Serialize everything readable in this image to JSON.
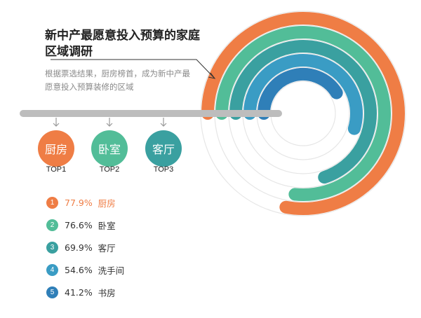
{
  "title": "新中产最愿意投入预算的家庭区域调研",
  "subtitle": "根据票选结果，厨房榜首，成为新中产最愿意投入预算装修的区域",
  "top3": [
    {
      "name": "厨房",
      "rank": "TOP1",
      "color": "#ef7d45"
    },
    {
      "name": "卧室",
      "rank": "TOP2",
      "color": "#52bd98"
    },
    {
      "name": "客厅",
      "rank": "TOP3",
      "color": "#3aa0a0"
    }
  ],
  "legend": [
    {
      "num": "1",
      "pct": "77.9%",
      "name": "厨房",
      "color": "#ef7d45",
      "highlight": true
    },
    {
      "num": "2",
      "pct": "76.6%",
      "name": "卧室",
      "color": "#52bd98",
      "highlight": false
    },
    {
      "num": "3",
      "pct": "69.9%",
      "name": "客厅",
      "color": "#3aa0a0",
      "highlight": false
    },
    {
      "num": "4",
      "pct": "54.6%",
      "name": "洗手间",
      "color": "#3a9cc4",
      "highlight": false
    },
    {
      "num": "5",
      "pct": "41.2%",
      "name": "书房",
      "color": "#2f7fb8",
      "highlight": false
    }
  ],
  "chart_data": {
    "type": "radial_bar",
    "title": "新中产最愿意投入预算的家庭区域调研",
    "categories": [
      "厨房",
      "卧室",
      "客厅",
      "洗手间",
      "书房"
    ],
    "values": [
      77.9,
      76.6,
      69.9,
      54.6,
      41.2
    ],
    "unit": "%",
    "colors": [
      "#ef7d45",
      "#52bd98",
      "#3aa0a0",
      "#3a9cc4",
      "#2f7fb8"
    ]
  }
}
